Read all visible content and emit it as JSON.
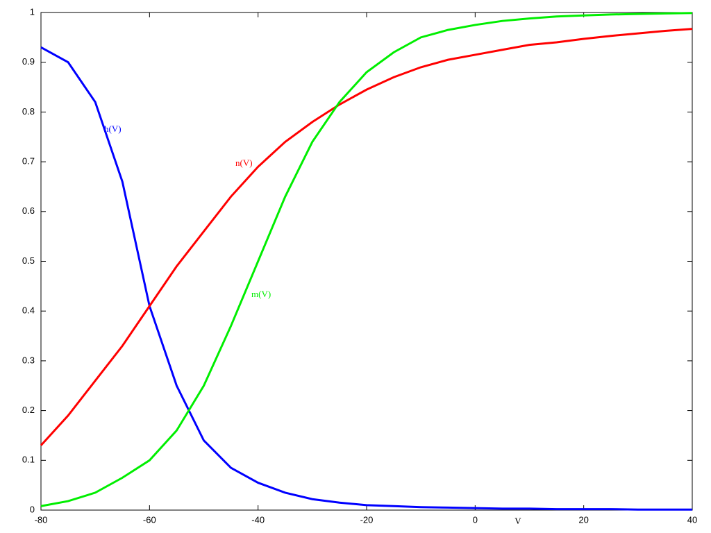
{
  "chart_data": {
    "type": "line",
    "xlabel": "V",
    "x": [
      -80,
      -75,
      -70,
      -65,
      -60,
      -55,
      -50,
      -45,
      -40,
      -35,
      -30,
      -25,
      -20,
      -15,
      -10,
      -5,
      0,
      5,
      10,
      15,
      20,
      25,
      30,
      35,
      40
    ],
    "series": [
      {
        "name": "h(V)",
        "color": "#0000ff",
        "values": [
          0.93,
          0.9,
          0.82,
          0.66,
          0.41,
          0.25,
          0.14,
          0.085,
          0.055,
          0.035,
          0.022,
          0.015,
          0.01,
          0.008,
          0.006,
          0.005,
          0.004,
          0.003,
          0.003,
          0.002,
          0.002,
          0.002,
          0.001,
          0.001,
          0.001
        ]
      },
      {
        "name": "n(V)",
        "color": "#ff0000",
        "values": [
          0.13,
          0.19,
          0.26,
          0.33,
          0.41,
          0.49,
          0.56,
          0.63,
          0.69,
          0.74,
          0.78,
          0.815,
          0.845,
          0.87,
          0.89,
          0.905,
          0.915,
          0.925,
          0.935,
          0.94,
          0.947,
          0.953,
          0.958,
          0.963,
          0.967
        ]
      },
      {
        "name": "m(V)",
        "color": "#00ee00",
        "values": [
          0.008,
          0.018,
          0.035,
          0.065,
          0.1,
          0.16,
          0.25,
          0.37,
          0.5,
          0.63,
          0.74,
          0.82,
          0.88,
          0.92,
          0.95,
          0.965,
          0.975,
          0.983,
          0.988,
          0.992,
          0.994,
          0.996,
          0.997,
          0.998,
          0.999
        ]
      }
    ],
    "xlim": [
      -80,
      40
    ],
    "xticks": [
      -80,
      -60,
      -40,
      -20,
      0,
      20,
      40
    ],
    "ylim": [
      0,
      1
    ],
    "yticks": [
      0,
      0.1,
      0.2,
      0.3,
      0.4,
      0.5,
      0.6,
      0.7,
      0.8,
      0.9,
      1
    ],
    "grid": false
  }
}
